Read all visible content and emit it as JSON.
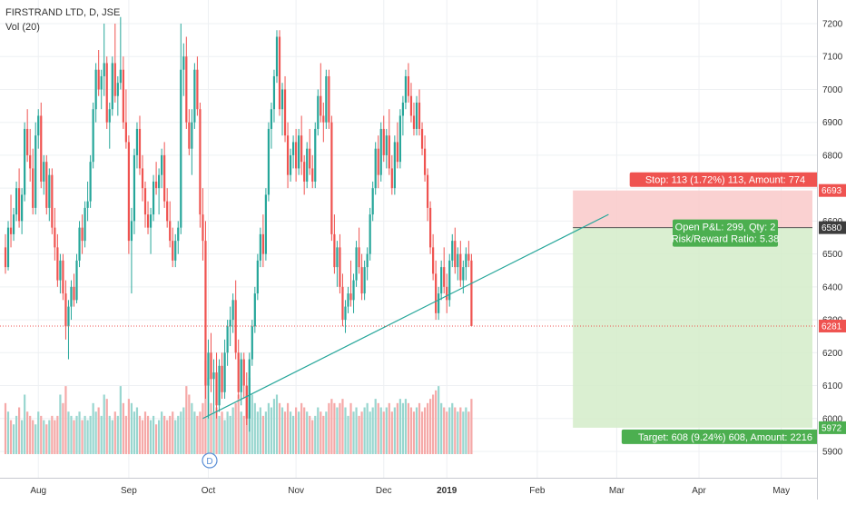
{
  "header": {
    "symbol_line": "FIRSTRAND LTD, D, JSE",
    "indicator_line": "Vol (20)"
  },
  "colors": {
    "up": "#26a69a",
    "down": "#ef5350",
    "vol_up": "#98d6cf",
    "vol_down": "#f5a9a8",
    "trendline": "#26a69a",
    "stop_zone": "#f9c9c9",
    "target_zone": "#d3ecc9",
    "stop_label_bg": "#ef5350",
    "target_label_bg": "#4caf50",
    "current_line": "#ef5350"
  },
  "chart_data": {
    "type": "candlestick",
    "y_axis": {
      "min": 5820,
      "max": 7260,
      "ticks": [
        5900,
        6000,
        6100,
        6200,
        6300,
        6400,
        6500,
        6600,
        6700,
        6800,
        6900,
        7000,
        7100,
        7200
      ]
    },
    "x_axis": {
      "labels": [
        "Aug",
        "Sep",
        "Oct",
        "Nov",
        "Dec",
        "2019",
        "Feb",
        "Mar",
        "Apr",
        "May"
      ],
      "label_bars": [
        12,
        45,
        74,
        106,
        138,
        161,
        194,
        223,
        253,
        283
      ]
    },
    "candles": [
      [
        6520,
        6560,
        6440,
        6460,
        12
      ],
      [
        6460,
        6600,
        6450,
        6580,
        10
      ],
      [
        6580,
        6680,
        6520,
        6560,
        8
      ],
      [
        6560,
        6640,
        6540,
        6620,
        7
      ],
      [
        6620,
        6720,
        6600,
        6700,
        9
      ],
      [
        6700,
        6760,
        6580,
        6600,
        11
      ],
      [
        6600,
        6700,
        6560,
        6680,
        8
      ],
      [
        6680,
        6900,
        6660,
        6880,
        14
      ],
      [
        6880,
        6940,
        6780,
        6800,
        10
      ],
      [
        6800,
        6880,
        6720,
        6760,
        9
      ],
      [
        6760,
        6820,
        6620,
        6640,
        8
      ],
      [
        6640,
        6900,
        6620,
        6860,
        7
      ],
      [
        6860,
        6940,
        6820,
        6920,
        10
      ],
      [
        6920,
        6960,
        6700,
        6720,
        9
      ],
      [
        6720,
        6800,
        6680,
        6780,
        8
      ],
      [
        6780,
        6800,
        6620,
        6640,
        7
      ],
      [
        6640,
        6760,
        6600,
        6740,
        8
      ],
      [
        6740,
        6760,
        6560,
        6580,
        9
      ],
      [
        6580,
        6640,
        6480,
        6520,
        8
      ],
      [
        6520,
        6560,
        6400,
        6420,
        9
      ],
      [
        6420,
        6500,
        6380,
        6480,
        14
      ],
      [
        6480,
        6500,
        6360,
        6380,
        12
      ],
      [
        6380,
        6420,
        6240,
        6280,
        16
      ],
      [
        6280,
        6360,
        6180,
        6340,
        10
      ],
      [
        6340,
        6420,
        6300,
        6400,
        9
      ],
      [
        6400,
        6440,
        6340,
        6360,
        8
      ],
      [
        6360,
        6500,
        6350,
        6480,
        9
      ],
      [
        6480,
        6600,
        6460,
        6580,
        10
      ],
      [
        6580,
        6620,
        6500,
        6540,
        8
      ],
      [
        6540,
        6660,
        6520,
        6640,
        9
      ],
      [
        6640,
        6720,
        6600,
        6660,
        8
      ],
      [
        6660,
        6800,
        6640,
        6780,
        9
      ],
      [
        6780,
        6960,
        6760,
        6940,
        12
      ],
      [
        6940,
        7080,
        6900,
        7060,
        10
      ],
      [
        7060,
        7120,
        6980,
        7000,
        11
      ],
      [
        7000,
        7060,
        6940,
        7040,
        9
      ],
      [
        7040,
        7200,
        6980,
        7080,
        14
      ],
      [
        7080,
        7100,
        6880,
        6900,
        13
      ],
      [
        6900,
        6960,
        6820,
        6940,
        9
      ],
      [
        6940,
        7100,
        6920,
        7080,
        8
      ],
      [
        7080,
        7200,
        6960,
        6980,
        10
      ],
      [
        6980,
        7040,
        6920,
        7020,
        9
      ],
      [
        7020,
        7220,
        7000,
        7060,
        16
      ],
      [
        7060,
        7100,
        6880,
        6900,
        12
      ],
      [
        6900,
        7000,
        6820,
        6840,
        9
      ],
      [
        6840,
        6860,
        6500,
        6540,
        13
      ],
      [
        6540,
        6640,
        6380,
        6600,
        12
      ],
      [
        6600,
        6820,
        6560,
        6800,
        10
      ],
      [
        6800,
        6900,
        6760,
        6880,
        11
      ],
      [
        6880,
        6920,
        6740,
        6760,
        9
      ],
      [
        6760,
        6800,
        6660,
        6700,
        8
      ],
      [
        6700,
        6720,
        6580,
        6620,
        10
      ],
      [
        6620,
        6660,
        6560,
        6580,
        9
      ],
      [
        6580,
        6640,
        6500,
        6620,
        8
      ],
      [
        6620,
        6740,
        6600,
        6720,
        9
      ],
      [
        6720,
        6780,
        6680,
        6700,
        7
      ],
      [
        6700,
        6760,
        6620,
        6740,
        8
      ],
      [
        6740,
        6820,
        6700,
        6800,
        10
      ],
      [
        6800,
        6840,
        6640,
        6660,
        9
      ],
      [
        6660,
        6700,
        6580,
        6600,
        8
      ],
      [
        6600,
        6660,
        6520,
        6540,
        9
      ],
      [
        6540,
        6580,
        6460,
        6480,
        10
      ],
      [
        6480,
        6560,
        6460,
        6540,
        8
      ],
      [
        6540,
        6600,
        6500,
        6580,
        9
      ],
      [
        6580,
        7200,
        6560,
        7060,
        10
      ],
      [
        7060,
        7140,
        6980,
        7100,
        11
      ],
      [
        7100,
        7160,
        6880,
        6900,
        16
      ],
      [
        6900,
        6940,
        6800,
        6820,
        14
      ],
      [
        6820,
        6940,
        6740,
        6900,
        12
      ],
      [
        6900,
        7080,
        6880,
        7060,
        10
      ],
      [
        7060,
        7100,
        6920,
        6940,
        9
      ],
      [
        6940,
        6960,
        6580,
        6620,
        10
      ],
      [
        6620,
        6700,
        6480,
        6540,
        12
      ],
      [
        6540,
        6600,
        6060,
        6100,
        22
      ],
      [
        6100,
        6240,
        6000,
        6200,
        18
      ],
      [
        6200,
        6260,
        6080,
        6120,
        12
      ],
      [
        6120,
        6180,
        6020,
        6140,
        10
      ],
      [
        6140,
        6200,
        6000,
        6040,
        11
      ],
      [
        6040,
        6180,
        6020,
        6160,
        9
      ],
      [
        6160,
        6200,
        6060,
        6080,
        10
      ],
      [
        6080,
        6240,
        6060,
        6200,
        8
      ],
      [
        6200,
        6300,
        6160,
        6280,
        10
      ],
      [
        6280,
        6340,
        6220,
        6300,
        9
      ],
      [
        6300,
        6380,
        6260,
        6360,
        11
      ],
      [
        6360,
        6420,
        6180,
        6200,
        12
      ],
      [
        6200,
        6240,
        6060,
        6080,
        14
      ],
      [
        6080,
        6200,
        6040,
        6180,
        10
      ],
      [
        6180,
        6200,
        6060,
        6100,
        9
      ],
      [
        6100,
        6140,
        5980,
        6000,
        16
      ],
      [
        6000,
        6200,
        5960,
        6180,
        18
      ],
      [
        6180,
        6300,
        6160,
        6280,
        14
      ],
      [
        6280,
        6400,
        6260,
        6380,
        12
      ],
      [
        6380,
        6500,
        6360,
        6480,
        10
      ],
      [
        6480,
        6580,
        6460,
        6560,
        11
      ],
      [
        6560,
        6620,
        6460,
        6500,
        9
      ],
      [
        6500,
        6700,
        6480,
        6680,
        10
      ],
      [
        6680,
        6900,
        6660,
        6880,
        12
      ],
      [
        6880,
        6960,
        6820,
        6940,
        11
      ],
      [
        6940,
        7060,
        6900,
        7040,
        13
      ],
      [
        7040,
        7180,
        7020,
        7160,
        14
      ],
      [
        7160,
        7180,
        6920,
        6940,
        12
      ],
      [
        6940,
        7020,
        6860,
        7000,
        11
      ],
      [
        7000,
        7040,
        6840,
        6860,
        10
      ],
      [
        6860,
        6900,
        6700,
        6740,
        12
      ],
      [
        6740,
        6820,
        6720,
        6800,
        10
      ],
      [
        6800,
        6860,
        6760,
        6840,
        9
      ],
      [
        6840,
        6880,
        6720,
        6760,
        11
      ],
      [
        6760,
        6880,
        6740,
        6860,
        10
      ],
      [
        6860,
        6920,
        6740,
        6780,
        12
      ],
      [
        6780,
        6800,
        6680,
        6720,
        11
      ],
      [
        6720,
        6840,
        6700,
        6820,
        10
      ],
      [
        6820,
        6880,
        6740,
        6760,
        9
      ],
      [
        6760,
        6800,
        6700,
        6720,
        8
      ],
      [
        6720,
        6900,
        6700,
        6880,
        9
      ],
      [
        6880,
        7000,
        6860,
        6980,
        11
      ],
      [
        6980,
        7080,
        6900,
        6920,
        10
      ],
      [
        6920,
        6960,
        6840,
        6900,
        9
      ],
      [
        6900,
        7060,
        6880,
        7040,
        10
      ],
      [
        7040,
        7060,
        6880,
        6900,
        12
      ],
      [
        6900,
        6920,
        6540,
        6560,
        13
      ],
      [
        6560,
        6620,
        6440,
        6460,
        12
      ],
      [
        6460,
        6540,
        6400,
        6520,
        11
      ],
      [
        6520,
        6560,
        6380,
        6400,
        12
      ],
      [
        6400,
        6440,
        6280,
        6300,
        13
      ],
      [
        6300,
        6360,
        6260,
        6340,
        11
      ],
      [
        6340,
        6400,
        6320,
        6380,
        9
      ],
      [
        6380,
        6480,
        6340,
        6360,
        12
      ],
      [
        6360,
        6440,
        6320,
        6420,
        10
      ],
      [
        6420,
        6540,
        6400,
        6520,
        11
      ],
      [
        6520,
        6580,
        6440,
        6460,
        9
      ],
      [
        6460,
        6500,
        6360,
        6380,
        10
      ],
      [
        6380,
        6480,
        6360,
        6460,
        11
      ],
      [
        6460,
        6520,
        6420,
        6500,
        12
      ],
      [
        6500,
        6640,
        6480,
        6620,
        10
      ],
      [
        6620,
        6720,
        6600,
        6700,
        11
      ],
      [
        6700,
        6840,
        6680,
        6820,
        13
      ],
      [
        6820,
        6860,
        6700,
        6740,
        12
      ],
      [
        6740,
        6900,
        6720,
        6880,
        11
      ],
      [
        6880,
        6920,
        6780,
        6800,
        10
      ],
      [
        6800,
        6880,
        6760,
        6860,
        11
      ],
      [
        6860,
        6940,
        6740,
        6760,
        12
      ],
      [
        6760,
        6800,
        6680,
        6700,
        10
      ],
      [
        6700,
        6860,
        6680,
        6840,
        11
      ],
      [
        6840,
        6900,
        6760,
        6780,
        12
      ],
      [
        6780,
        6940,
        6760,
        6920,
        13
      ],
      [
        6920,
        6980,
        6860,
        6960,
        12
      ],
      [
        6960,
        7060,
        6940,
        7040,
        13
      ],
      [
        7040,
        7080,
        6960,
        6980,
        12
      ],
      [
        6980,
        7020,
        6900,
        6920,
        11
      ],
      [
        6920,
        6960,
        6860,
        6880,
        10
      ],
      [
        6880,
        6980,
        6860,
        6960,
        11
      ],
      [
        6960,
        7000,
        6860,
        6880,
        12
      ],
      [
        6880,
        6900,
        6800,
        6820,
        10
      ],
      [
        6820,
        6860,
        6720,
        6740,
        11
      ],
      [
        6740,
        6760,
        6600,
        6640,
        12
      ],
      [
        6640,
        6660,
        6500,
        6520,
        13
      ],
      [
        6520,
        6560,
        6420,
        6440,
        14
      ],
      [
        6440,
        6480,
        6300,
        6320,
        15
      ],
      [
        6320,
        6400,
        6300,
        6380,
        16
      ],
      [
        6380,
        6480,
        6360,
        6460,
        12
      ],
      [
        6460,
        6520,
        6380,
        6400,
        11
      ],
      [
        6400,
        6440,
        6320,
        6360,
        10
      ],
      [
        6360,
        6500,
        6340,
        6480,
        11
      ],
      [
        6480,
        6560,
        6460,
        6540,
        12
      ],
      [
        6540,
        6580,
        6440,
        6460,
        11
      ],
      [
        6460,
        6520,
        6420,
        6500,
        10
      ],
      [
        6500,
        6540,
        6400,
        6420,
        11
      ],
      [
        6420,
        6480,
        6380,
        6460,
        10
      ],
      [
        6460,
        6520,
        6420,
        6500,
        11
      ],
      [
        6500,
        6540,
        6460,
        6480,
        10
      ],
      [
        6480,
        6500,
        6280,
        6281,
        13
      ]
    ],
    "trendline": {
      "start": [
        72,
        6000
      ],
      "end": [
        220,
        6620
      ]
    },
    "current_price": 6281,
    "position": {
      "entry": 6580,
      "stop": 6693,
      "target": 5972,
      "start_bar": 207,
      "end_bar": 290
    },
    "price_tags": [
      {
        "name": "stop",
        "value": 6693,
        "label": "6693",
        "bg": "#ef5350",
        "fg": "#ffffff"
      },
      {
        "name": "entry",
        "value": 6580,
        "label": "6580",
        "bg": "#3d3d3d",
        "fg": "#ffffff"
      },
      {
        "name": "current",
        "value": 6281,
        "label": "6281",
        "bg": "#ef5350",
        "fg": "#ffffff"
      },
      {
        "name": "target",
        "value": 5972,
        "label": "5972",
        "bg": "#4caf50",
        "fg": "#ffffff"
      }
    ],
    "annotations": {
      "stop": "Stop: 113 (1.72%) 113, Amount: 774",
      "open_pnl": "Open P&L: 299, Qty: 2",
      "risk_reward": "Risk/Reward Ratio: 5.38",
      "target": "Target: 608 (9.24%) 608, Amount: 2216"
    },
    "dividend_marker": "D"
  }
}
